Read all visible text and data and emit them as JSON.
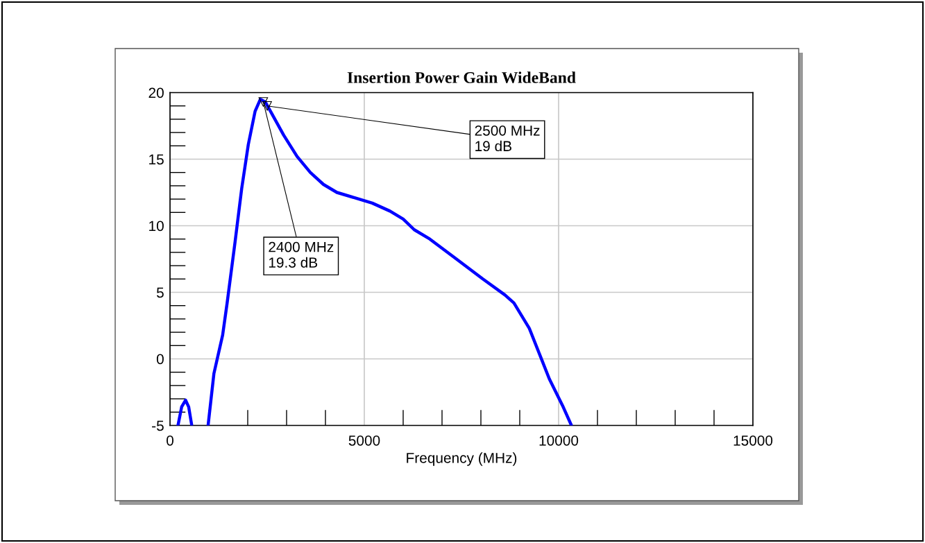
{
  "chart_data": {
    "type": "line",
    "title": "Insertion Power Gain WideBand",
    "xlabel": "Frequency (MHz)",
    "series": [
      {
        "color": "#0000ff",
        "x": [
          205,
          300,
          400,
          480,
          560,
          770,
          980,
          1130,
          1355,
          1470,
          1675,
          1845,
          2015,
          2190,
          2325,
          2450,
          2585,
          2925,
          3270,
          3610,
          3950,
          4295,
          4750,
          5205,
          5660,
          6000,
          6285,
          6685,
          7370,
          8050,
          8620,
          8850,
          9245,
          9530,
          9760,
          10100,
          10330
        ],
        "values": [
          -5,
          -3.6,
          -3.1,
          -3.6,
          -5,
          null,
          -5,
          -1.1,
          1.8,
          4.2,
          8.8,
          12.8,
          16.1,
          18.6,
          19.5,
          19.3,
          18.6,
          16.8,
          15.2,
          14.0,
          13.1,
          12.5,
          12.1,
          11.7,
          11.1,
          10.5,
          9.7,
          9.0,
          7.5,
          6.0,
          4.8,
          4.2,
          2.3,
          0.2,
          -1.5,
          -3.5,
          -5
        ]
      }
    ],
    "annotations": [
      {
        "text": "2500 MHz\n19 dB",
        "x": 2500,
        "y": 19
      },
      {
        "text": "2400 MHz\n19.3 dB",
        "x": 2400,
        "y": 19.3
      }
    ],
    "xlim": [
      0,
      15000
    ],
    "xticks": [
      0,
      5000,
      10000,
      15000
    ],
    "ylim": [
      -5,
      20
    ],
    "yticks": [
      -5,
      0,
      5,
      10,
      15,
      20
    ],
    "grid": true,
    "line_style": "solid"
  }
}
